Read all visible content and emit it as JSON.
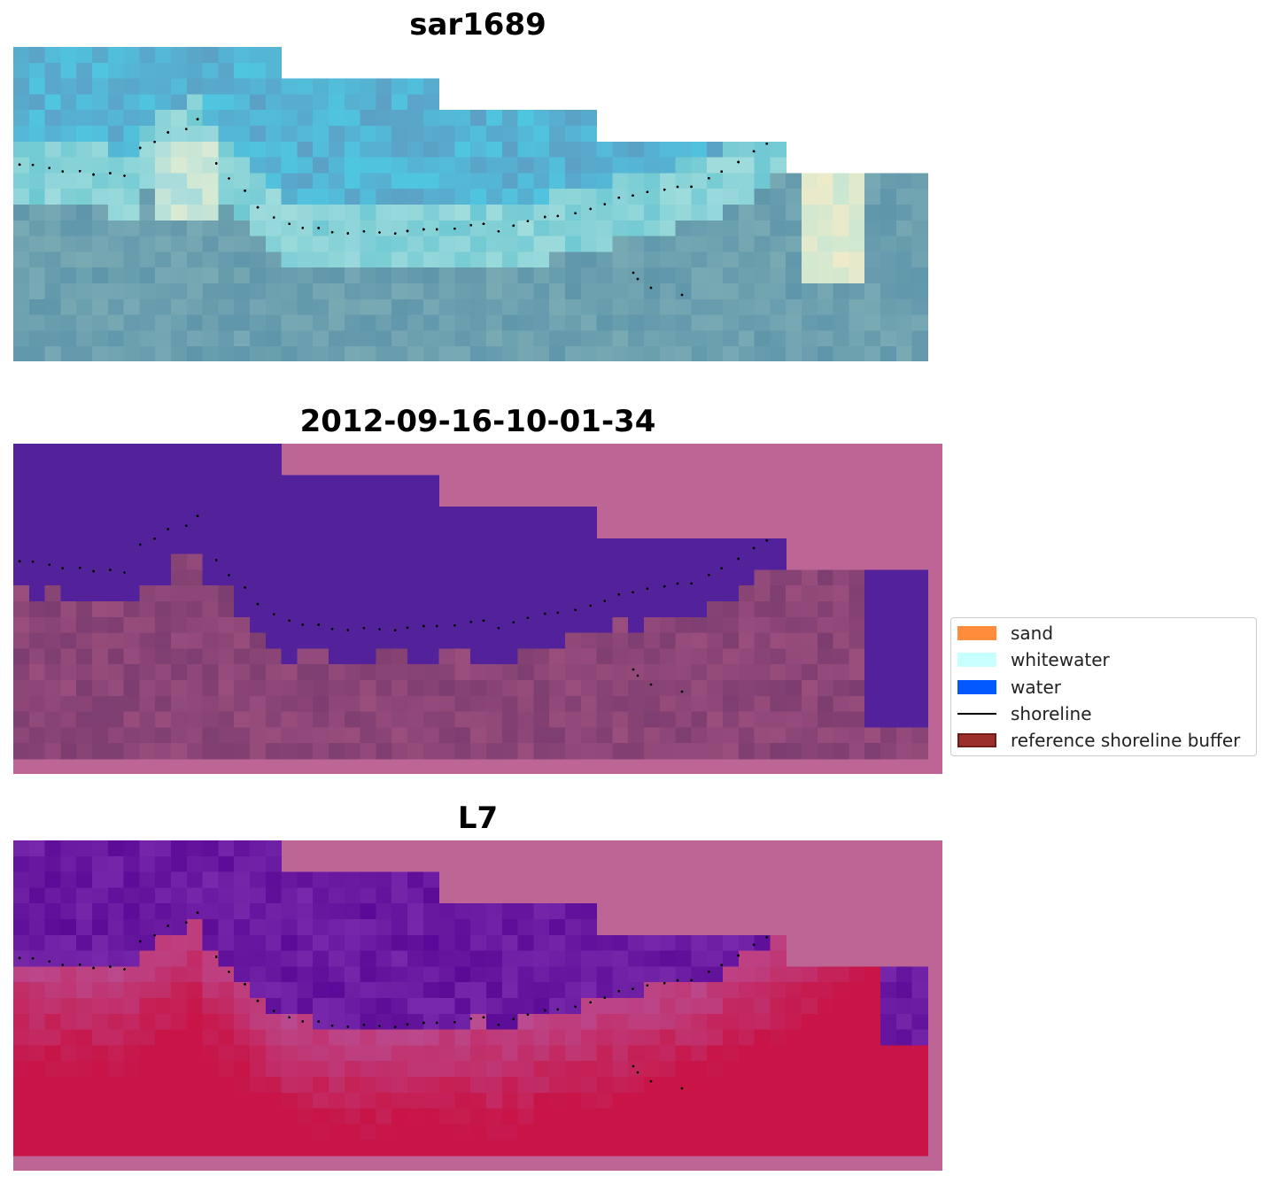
{
  "titles": {
    "top": "sar1689",
    "middle": "2012-09-16-10-01-34",
    "bottom": "L7"
  },
  "legend": {
    "items": [
      {
        "label": "sand",
        "color": "#ff8c3a",
        "kind": "patch"
      },
      {
        "label": "whitewater",
        "color": "#c8ffff",
        "kind": "patch"
      },
      {
        "label": "water",
        "color": "#005aff",
        "kind": "patch"
      },
      {
        "label": "shoreline",
        "color": "#000000",
        "kind": "line"
      },
      {
        "label": "reference shoreline buffer",
        "color": "#9a2f2b",
        "kind": "patch"
      }
    ]
  },
  "colors": {
    "mask_pink": "#bd6695",
    "water_purple": "#53229a",
    "land_mauve": "#7d3d70",
    "ndwi_red": "#c8184a",
    "rgb_cyan": "#4fc6d8",
    "rgb_grey_blue": "#5e97ad"
  }
}
